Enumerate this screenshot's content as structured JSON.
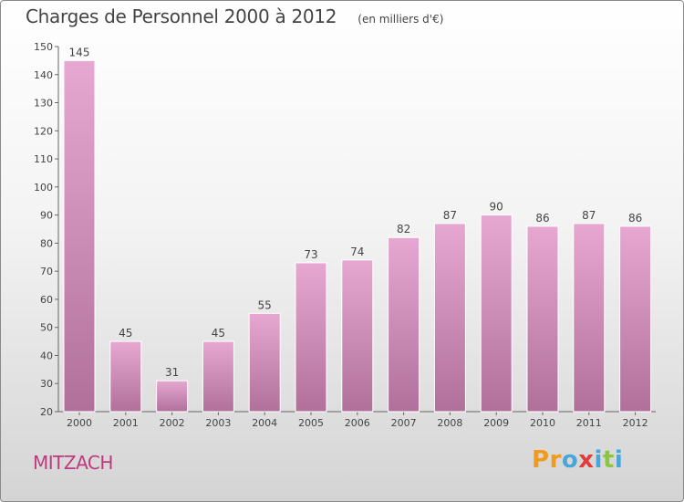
{
  "chart_data": {
    "type": "bar",
    "title": "Charges de Personnel 2000 à 2012",
    "subtitle": "(en milliers d'€)",
    "categories": [
      "2000",
      "2001",
      "2002",
      "2003",
      "2004",
      "2005",
      "2006",
      "2007",
      "2008",
      "2009",
      "2010",
      "2011",
      "2012"
    ],
    "values": [
      145,
      45,
      31,
      45,
      55,
      73,
      74,
      82,
      87,
      90,
      86,
      87,
      86
    ],
    "ylim": [
      20,
      150
    ],
    "yticks": [
      20,
      30,
      40,
      50,
      60,
      70,
      80,
      90,
      100,
      110,
      120,
      130,
      140,
      150
    ],
    "grid": false,
    "bar_color": "#d98fbd"
  },
  "location": "MITZACH",
  "logo": {
    "letters": [
      "P",
      "r",
      "o",
      "x",
      "i",
      "t",
      "i"
    ],
    "colors": [
      "#f19a1e",
      "#f19a1e",
      "#4aa6d8",
      "#e23b3b",
      "#4aa6d8",
      "#8cc63f",
      "#4aa6d8"
    ]
  }
}
